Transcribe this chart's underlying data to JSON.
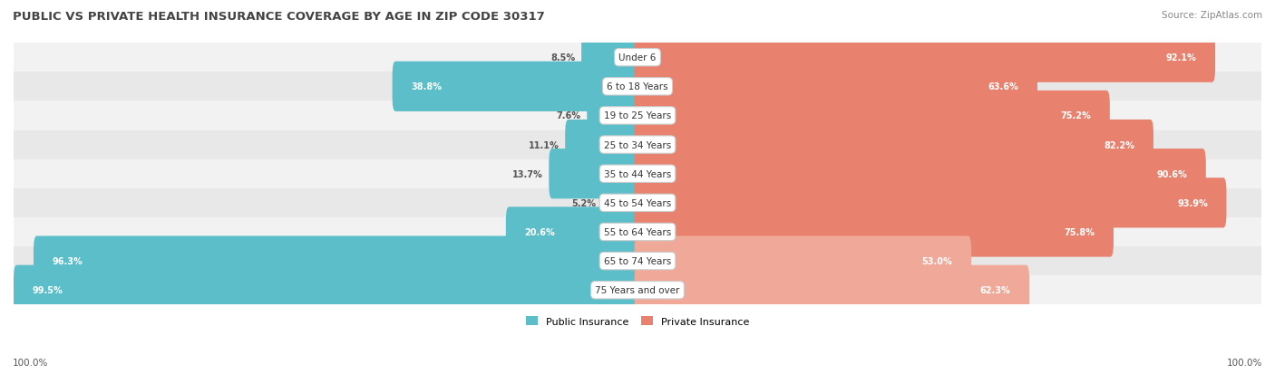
{
  "title": "PUBLIC VS PRIVATE HEALTH INSURANCE COVERAGE BY AGE IN ZIP CODE 30317",
  "source": "Source: ZipAtlas.com",
  "categories": [
    "Under 6",
    "6 to 18 Years",
    "19 to 25 Years",
    "25 to 34 Years",
    "35 to 44 Years",
    "45 to 54 Years",
    "55 to 64 Years",
    "65 to 74 Years",
    "75 Years and over"
  ],
  "public_values": [
    8.5,
    38.8,
    7.6,
    11.1,
    13.7,
    5.2,
    20.6,
    96.3,
    99.5
  ],
  "private_values": [
    92.1,
    63.6,
    75.2,
    82.2,
    90.6,
    93.9,
    75.8,
    53.0,
    62.3
  ],
  "public_color": "#5bbec8",
  "private_color": "#e8826e",
  "private_color_light": "#f0a898",
  "public_label": "Public Insurance",
  "private_label": "Private Insurance",
  "row_bg_color_light": "#f2f2f2",
  "row_bg_color_dark": "#e8e8e8",
  "title_color": "#444444",
  "source_color": "#888888",
  "value_color_white": "#ffffff",
  "value_color_dark": "#666666",
  "axis_label": "100.0%",
  "figsize": [
    14.06,
    4.14
  ],
  "dpi": 100,
  "max_val": 100
}
